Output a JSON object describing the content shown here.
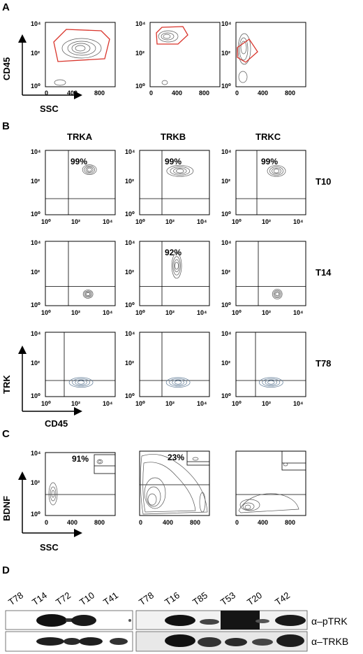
{
  "panel_letters": {
    "a": "A",
    "b": "B",
    "c": "C",
    "d": "D"
  },
  "panel_a": {
    "y_label": "CD45",
    "x_label": "SSC",
    "y_ticks": [
      "10⁴",
      "10²",
      "10⁰"
    ],
    "x_ticks": [
      "0",
      "400",
      "800"
    ],
    "plots": [
      {
        "gate": "large polygon"
      },
      {
        "gate": "small polygon"
      },
      {
        "gate": "lower left polygon"
      }
    ]
  },
  "panel_b": {
    "columns": [
      "TRKA",
      "TRKB",
      "TRKC"
    ],
    "rows": [
      "T10",
      "T14",
      "T78"
    ],
    "y_label": "TRK",
    "x_label": "CD45",
    "y_ticks": [
      "10⁴",
      "10²",
      "10⁰"
    ],
    "x_ticks": [
      "10⁰",
      "10²",
      "10⁴"
    ],
    "percentages": [
      [
        "99%",
        "99%",
        "99%"
      ],
      [
        "",
        "92%",
        ""
      ],
      [
        "",
        "",
        ""
      ]
    ]
  },
  "panel_c": {
    "y_label": "BDNF",
    "x_label": "SSC",
    "y_ticks": [
      "10⁴",
      "10²",
      "10⁰"
    ],
    "x_ticks": [
      "0",
      "400",
      "800"
    ],
    "percentages": [
      "91%",
      "23%",
      ""
    ]
  },
  "panel_d": {
    "left_lanes": [
      "T78",
      "T14",
      "T72",
      "T10",
      "T41"
    ],
    "right_lanes": [
      "T78",
      "T16",
      "T85",
      "T53",
      "T20",
      "T42"
    ],
    "antibodies": [
      "α–pTRK",
      "α–TRKB"
    ]
  },
  "colors": {
    "gate": "#d9342b",
    "contour": "#555555",
    "contour_blue": "#5e7a96",
    "axis": "#000000"
  }
}
